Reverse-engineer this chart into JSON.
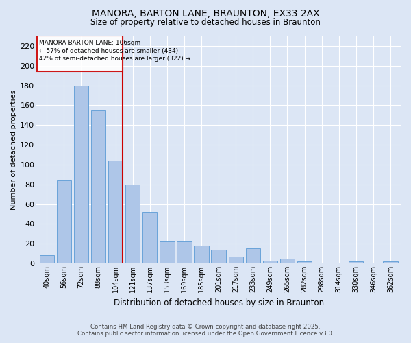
{
  "title": "MANORA, BARTON LANE, BRAUNTON, EX33 2AX",
  "subtitle": "Size of property relative to detached houses in Braunton",
  "xlabel": "Distribution of detached houses by size in Braunton",
  "ylabel": "Number of detached properties",
  "bar_labels": [
    "40sqm",
    "56sqm",
    "72sqm",
    "88sqm",
    "104sqm",
    "121sqm",
    "137sqm",
    "153sqm",
    "169sqm",
    "185sqm",
    "201sqm",
    "217sqm",
    "233sqm",
    "249sqm",
    "265sqm",
    "282sqm",
    "298sqm",
    "314sqm",
    "330sqm",
    "346sqm",
    "362sqm"
  ],
  "bar_values": [
    8,
    84,
    180,
    155,
    104,
    80,
    52,
    22,
    22,
    18,
    14,
    7,
    15,
    3,
    5,
    2,
    1,
    0,
    2,
    1,
    2
  ],
  "bar_color": "#aec6e8",
  "bar_edge_color": "#5b9bd5",
  "property_line_idx": 4,
  "property_line_label": "MANORA BARTON LANE: 106sqm",
  "annotation_line1": "← 57% of detached houses are smaller (434)",
  "annotation_line2": "42% of semi-detached houses are larger (322) →",
  "box_color": "#cc0000",
  "ylim": [
    0,
    230
  ],
  "yticks": [
    0,
    20,
    40,
    60,
    80,
    100,
    120,
    140,
    160,
    180,
    200,
    220
  ],
  "background_color": "#dce6f5",
  "footer1": "Contains HM Land Registry data © Crown copyright and database right 2025.",
  "footer2": "Contains public sector information licensed under the Open Government Licence v3.0."
}
